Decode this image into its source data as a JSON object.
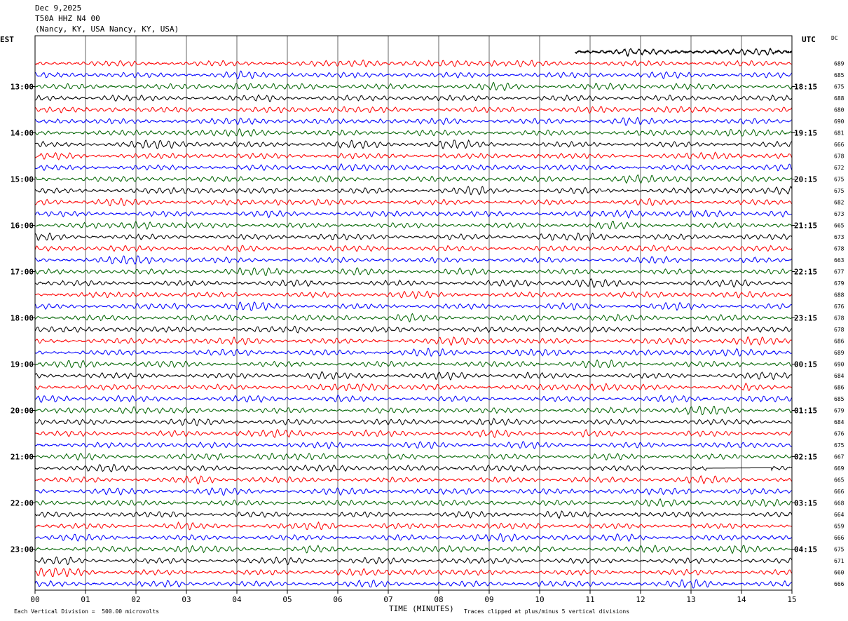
{
  "header": {
    "date": "Dec 9,2025",
    "station": "T50A HHZ N4 00",
    "location": "(Nancy, KY, USA Nancy, KY, USA)"
  },
  "axes": {
    "left_label": "EST",
    "right_label": "UTC",
    "dc_label": "DC",
    "x_label": "TIME (MINUTES)"
  },
  "footer": {
    "scale_note": "Each Vertical Division =  500.00 microvolts",
    "clip_note": "Traces clipped at plus/minus 5 vertical divisions"
  },
  "chart_data": {
    "type": "line",
    "title": "",
    "xlabel": "TIME (MINUTES)",
    "xlim": [
      0,
      15
    ],
    "x_ticks": [
      "00",
      "01",
      "02",
      "03",
      "04",
      "05",
      "06",
      "07",
      "08",
      "09",
      "10",
      "11",
      "12",
      "13",
      "14",
      "15"
    ],
    "est_labels": [
      {
        "row": 3,
        "label": "13:00"
      },
      {
        "row": 7,
        "label": "14:00"
      },
      {
        "row": 11,
        "label": "15:00"
      },
      {
        "row": 15,
        "label": "16:00"
      },
      {
        "row": 19,
        "label": "17:00"
      },
      {
        "row": 23,
        "label": "18:00"
      },
      {
        "row": 27,
        "label": "19:00"
      },
      {
        "row": 31,
        "label": "20:00"
      },
      {
        "row": 35,
        "label": "21:00"
      },
      {
        "row": 39,
        "label": "22:00"
      },
      {
        "row": 43,
        "label": "23:00"
      }
    ],
    "utc_labels": [
      {
        "row": 3,
        "label": "18:15"
      },
      {
        "row": 7,
        "label": "19:15"
      },
      {
        "row": 11,
        "label": "20:15"
      },
      {
        "row": 15,
        "label": "21:15"
      },
      {
        "row": 19,
        "label": "22:15"
      },
      {
        "row": 23,
        "label": "23:15"
      },
      {
        "row": 27,
        "label": "00:15"
      },
      {
        "row": 31,
        "label": "01:15"
      },
      {
        "row": 35,
        "label": "02:15"
      },
      {
        "row": 39,
        "label": "03:15"
      },
      {
        "row": 43,
        "label": "04:15"
      }
    ],
    "trace_colors": [
      "#000000",
      "#ff0000",
      "#0000ff",
      "#006400"
    ],
    "first_trace_start_minute": 10.7,
    "flatline": {
      "row": 36,
      "start_minute": 13.3,
      "end_minute": 14.6
    },
    "dc_offsets": [
      "",
      "689",
      "685",
      "675",
      "688",
      "680",
      "690",
      "681",
      "666",
      "678",
      "672",
      "675",
      "675",
      "682",
      "673",
      "665",
      "673",
      "678",
      "663",
      "677",
      "679",
      "688",
      "676",
      "678",
      "678",
      "686",
      "689",
      "690",
      "684",
      "686",
      "685",
      "679",
      "684",
      "676",
      "675",
      "667",
      "669",
      "665",
      "666",
      "668",
      "664",
      "659",
      "666",
      "675",
      "671",
      "660",
      "666"
    ]
  }
}
